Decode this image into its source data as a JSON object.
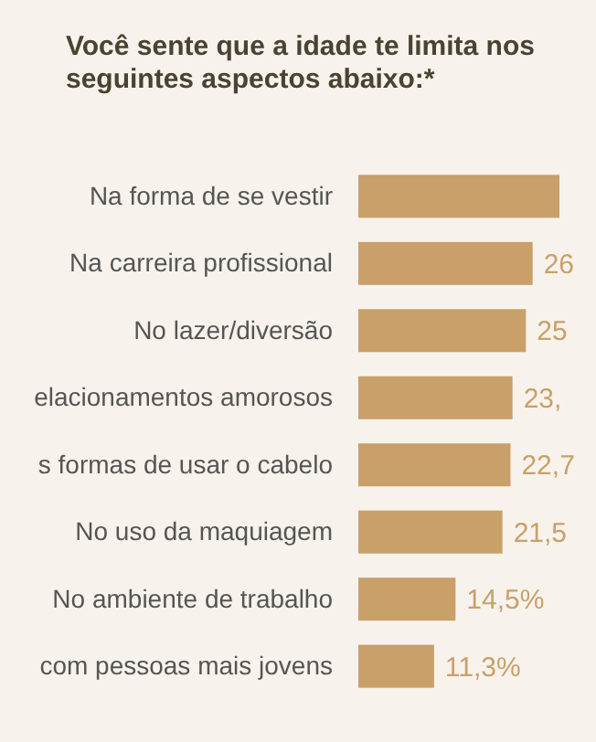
{
  "chart_data": {
    "type": "bar",
    "orientation": "horizontal",
    "title": "Você sente que a idade te limita nos seguintes aspectos abaixo:*",
    "categories": [
      "Na forma de se vestir",
      "Na carreira profissional",
      "No lazer/diversão",
      "elacionamentos amorosos",
      "s formas de usar o cabelo",
      "No uso da maquiagem",
      "No ambiente de trabalho",
      "com pessoas mais jovens"
    ],
    "values": [
      30,
      26,
      25,
      23,
      22.7,
      21.5,
      14.5,
      11.3
    ],
    "value_labels": [
      null,
      "26",
      "25",
      "23,",
      "22,7",
      "21,5",
      "14,5%",
      "11,3%"
    ],
    "xlim": [
      0,
      30
    ],
    "color": "#c9a06a",
    "tick_labels": "y"
  }
}
